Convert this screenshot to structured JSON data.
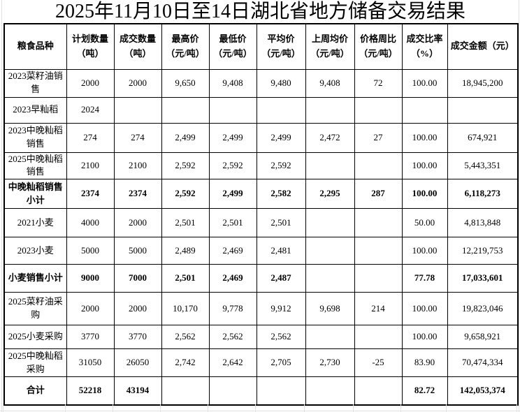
{
  "colors": {
    "border": "#000000",
    "background": "#ffffff",
    "faint_grid": "#e2e2e2",
    "text": "#000000"
  },
  "chart_data": {
    "type": "table",
    "title": "2025年11月10日至14日湖北省地方储备交易结果",
    "columns": [
      "粮食品种",
      "计划数量（吨）",
      "成交数量（吨）",
      "最高价（元/吨）",
      "最低价（元/吨）",
      "平均价（元/吨）",
      "上周均价（元/吨）",
      "价格周比（元/吨）",
      "成交比率（%）",
      "成交金额（元）"
    ],
    "header_lines": [
      [
        "粮食品种"
      ],
      [
        "计划数量",
        "（吨）"
      ],
      [
        "成交数量",
        "（吨）"
      ],
      [
        "最高价",
        "（元/吨）"
      ],
      [
        "最低价",
        "（元/吨）"
      ],
      [
        "平均价",
        "（元/吨）"
      ],
      [
        "上周均价",
        "（元/吨）"
      ],
      [
        "价格周比",
        "（元/吨）"
      ],
      [
        "成交比率",
        "（%）"
      ],
      [
        "成交金额（元）"
      ]
    ],
    "rows": [
      {
        "bold": false,
        "cells": [
          "2023菜籽油销售",
          "2000",
          "2000",
          "9,650",
          "9,408",
          "9,480",
          "9,408",
          "72",
          "100.00",
          "18,945,200"
        ]
      },
      {
        "bold": false,
        "cells": [
          "2023早籼稻",
          "2024",
          "",
          "",
          "",
          "",
          "",
          "",
          "",
          ""
        ]
      },
      {
        "bold": false,
        "cells": [
          "2023中晚籼稻销售",
          "274",
          "274",
          "2,499",
          "2,499",
          "2,499",
          "2,472",
          "27",
          "100.00",
          "674,921"
        ]
      },
      {
        "bold": false,
        "cells": [
          "2025中晚籼稻销售",
          "2100",
          "2100",
          "2,592",
          "2,592",
          "2,592",
          "",
          "",
          "100.00",
          "5,443,351"
        ]
      },
      {
        "bold": true,
        "cells": [
          "中晚籼稻销售小计",
          "2374",
          "2374",
          "2,592",
          "2,499",
          "2,582",
          "2,295",
          "287",
          "100.00",
          "6,118,273"
        ]
      },
      {
        "bold": false,
        "cells": [
          "2021小麦",
          "4000",
          "2000",
          "2,501",
          "2,501",
          "2,501",
          "",
          "",
          "50.00",
          "4,813,848"
        ]
      },
      {
        "bold": false,
        "cells": [
          "2023小麦",
          "5000",
          "5000",
          "2,489",
          "2,469",
          "2,481",
          "",
          "",
          "100.00",
          "12,219,753"
        ]
      },
      {
        "bold": true,
        "cells": [
          "小麦销售小计",
          "9000",
          "7000",
          "2,501",
          "2,469",
          "2,487",
          "",
          "",
          "77.78",
          "17,033,601"
        ]
      },
      {
        "bold": false,
        "cells": [
          "2025菜籽油采购",
          "2000",
          "2000",
          "10,170",
          "9,778",
          "9,912",
          "9,698",
          "214",
          "100.00",
          "19,823,046"
        ]
      },
      {
        "bold": false,
        "cells": [
          "2025小麦采购",
          "3770",
          "3770",
          "2,562",
          "2,562",
          "2,562",
          "",
          "",
          "100.00",
          "9,658,921"
        ]
      },
      {
        "bold": false,
        "cells": [
          "2025中晚籼稻采购",
          "31050",
          "26050",
          "2,742",
          "2,642",
          "2,705",
          "2,730",
          "-25",
          "83.90",
          "70,474,334"
        ]
      },
      {
        "bold": true,
        "cells": [
          "合计",
          "52218",
          "43194",
          "",
          "",
          "",
          "",
          "",
          "82.72",
          "142,053,374"
        ]
      }
    ]
  }
}
